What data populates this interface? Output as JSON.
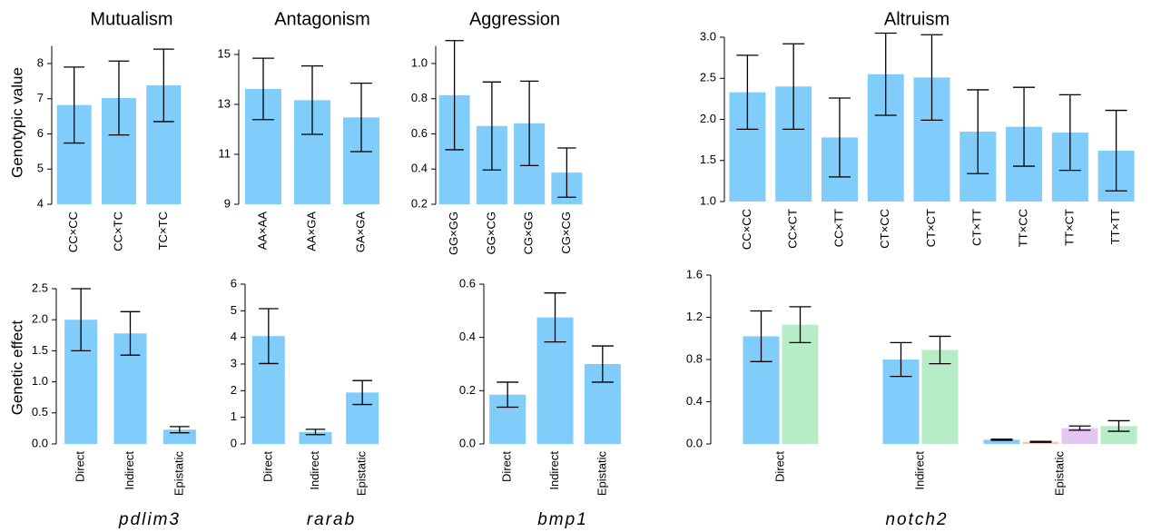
{
  "chart_data": [
    {
      "type": "bar",
      "title": "Mutualism",
      "ylabel": "Genotypic value",
      "categories": [
        "CC×CC",
        "CC×TC",
        "TC×TC"
      ],
      "series": [
        {
          "color": "#80ccfa",
          "values": [
            6.82,
            7.02,
            7.38
          ],
          "errors": [
            1.08,
            1.05,
            1.03
          ]
        }
      ],
      "ylim": [
        4,
        8.5
      ],
      "yticks": [
        4,
        5,
        6,
        7,
        8
      ]
    },
    {
      "type": "bar",
      "title": "Antagonism",
      "categories": [
        "AA×AA",
        "AA×GA",
        "GA×GA"
      ],
      "series": [
        {
          "color": "#80ccfa",
          "values": [
            13.62,
            13.17,
            12.48
          ],
          "errors": [
            1.23,
            1.37,
            1.37
          ]
        }
      ],
      "ylim": [
        9,
        15.2
      ],
      "yticks": [
        9,
        11,
        13,
        15
      ]
    },
    {
      "type": "bar",
      "title": "Aggression",
      "categories": [
        "GG×GG",
        "GG×CG",
        "CG×GG",
        "CG×CG"
      ],
      "series": [
        {
          "color": "#80ccfa",
          "values": [
            0.82,
            0.645,
            0.66,
            0.38
          ],
          "errors": [
            0.31,
            0.25,
            0.24,
            0.14
          ]
        }
      ],
      "ylim": [
        0.2,
        1.1
      ],
      "yticks": [
        0.2,
        0.4,
        0.6,
        0.8,
        {
          "value": 1,
          "label": "1.0"
        }
      ]
    },
    {
      "type": "bar",
      "title": "Altruism",
      "categories": [
        "CC×CC",
        "CC×CT",
        "CC×TT",
        "CT×CC",
        "CT×CT",
        "CT×TT",
        "TT×CC",
        "TT×CT",
        "TT×TT"
      ],
      "series": [
        {
          "color": "#80ccfa",
          "values": [
            2.33,
            2.4,
            1.78,
            2.55,
            2.51,
            1.85,
            1.91,
            1.84,
            1.62
          ],
          "errors": [
            0.45,
            0.52,
            0.48,
            0.5,
            0.52,
            0.51,
            0.48,
            0.46,
            0.49
          ]
        }
      ],
      "ylim": [
        1,
        3
      ],
      "yticks": [
        {
          "value": 1,
          "label": "1.0"
        },
        1.5,
        {
          "value": 2,
          "label": "2.0"
        },
        2.5,
        {
          "value": 3,
          "label": "3.0"
        }
      ]
    },
    {
      "type": "bar",
      "xlabel": "pdlim3",
      "ylabel": "Genetic effect",
      "categories": [
        "Direct",
        "Indirect",
        "Epistatic"
      ],
      "series": [
        {
          "color": "#80ccfa",
          "values": [
            2.0,
            1.78,
            0.23
          ],
          "errors": [
            0.5,
            0.35,
            0.05
          ]
        }
      ],
      "ylim": [
        0,
        2.5
      ],
      "yticks": [
        {
          "value": 0,
          "label": "0.0"
        },
        0.5,
        {
          "value": 1,
          "label": "1.0"
        },
        1.5,
        {
          "value": 2,
          "label": "2.0"
        },
        2.5
      ]
    },
    {
      "type": "bar",
      "xlabel": "rarab",
      "categories": [
        "Direct",
        "Indirect",
        "Epistatic"
      ],
      "series": [
        {
          "color": "#80ccfa",
          "values": [
            4.05,
            0.45,
            1.93
          ],
          "errors": [
            1.03,
            0.1,
            0.45
          ]
        }
      ],
      "ylim": [
        0,
        6
      ],
      "yticks": [
        0,
        1,
        2,
        3,
        4,
        5,
        6
      ]
    },
    {
      "type": "bar",
      "xlabel": "bmp1",
      "categories": [
        "Direct",
        "Indirect",
        "Epistatic"
      ],
      "series": [
        {
          "color": "#80ccfa",
          "values": [
            0.185,
            0.475,
            0.3
          ],
          "errors": [
            0.047,
            0.092,
            0.068
          ]
        }
      ],
      "ylim": [
        0,
        0.6
      ],
      "yticks": [
        {
          "value": 0,
          "label": "0.0"
        },
        0.2,
        0.4,
        0.6
      ]
    },
    {
      "type": "bar",
      "xlabel": "notch2",
      "categories": [
        "Direct",
        "Indirect",
        "Epistatic"
      ],
      "series": [
        {
          "color": "#80ccfa",
          "values": [
            1.02,
            0.8,
            0.04
          ],
          "errors": [
            0.24,
            0.16,
            0.005
          ]
        },
        {
          "color": "#f6c6bc",
          "values": [
            null,
            null,
            0.02
          ],
          "errors": [
            null,
            null,
            0.005
          ]
        },
        {
          "color": "#e3c6f2",
          "values": [
            null,
            null,
            0.15
          ],
          "errors": [
            null,
            null,
            0.02
          ]
        },
        {
          "color": "#b6ecc6",
          "values": [
            1.13,
            0.89,
            0.17
          ],
          "errors": [
            0.17,
            0.13,
            0.05
          ]
        }
      ],
      "ylim": [
        0,
        1.6
      ],
      "yticks": [
        {
          "value": 0,
          "label": "0.0"
        },
        0.4,
        0.8,
        1.2,
        1.6
      ]
    }
  ]
}
